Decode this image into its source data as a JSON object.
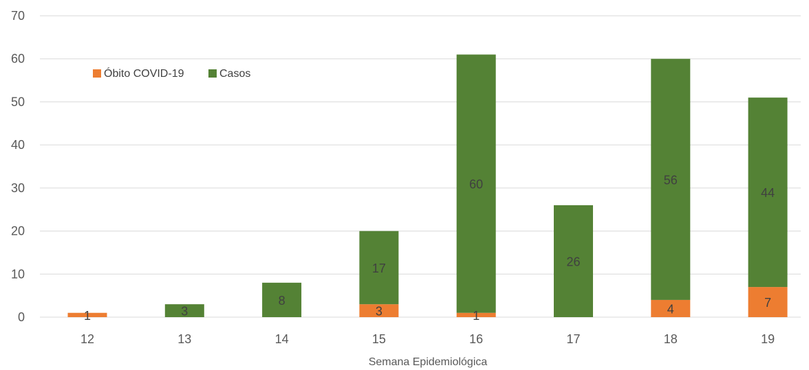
{
  "chart_data": {
    "type": "bar",
    "stacked": true,
    "categories": [
      "12",
      "13",
      "14",
      "15",
      "16",
      "17",
      "18",
      "19"
    ],
    "series": [
      {
        "name": "Óbito COVID-19",
        "color": "#ed7d31",
        "values": [
          1,
          0,
          0,
          3,
          1,
          0,
          4,
          7
        ],
        "labels": [
          "1",
          "",
          "",
          "3",
          "1",
          "",
          "4",
          "7"
        ]
      },
      {
        "name": "Casos",
        "color": "#548235",
        "values": [
          0,
          3,
          8,
          17,
          60,
          26,
          56,
          44
        ],
        "labels": [
          "",
          "3",
          "8",
          "17",
          "60",
          "26",
          "56",
          "44"
        ]
      }
    ],
    "xlabel": "Semana Epidemiológica",
    "ylabel": "",
    "ylim": [
      0,
      70
    ],
    "yticks": [
      0,
      10,
      20,
      30,
      40,
      50,
      60,
      70
    ],
    "grid": true,
    "legend_position": "top-left"
  }
}
